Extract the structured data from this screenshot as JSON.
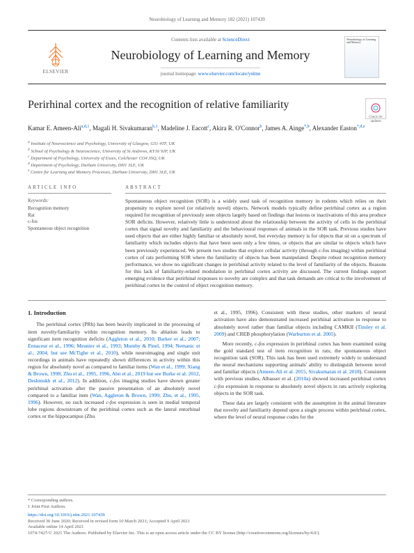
{
  "header": {
    "running": "Neurobiology of Learning and Memory 182 (2021) 107439"
  },
  "masthead": {
    "publisher": "ELSEVIER",
    "contents_prefix": "Contents lists available at ",
    "contents_link": "ScienceDirect",
    "journal": "Neurobiology of Learning and Memory",
    "homepage_prefix": "journal homepage: ",
    "homepage_url": "www.elsevier.com/locate/ynlme",
    "cover_text": "Neurobiology of Learning and Memory"
  },
  "paper": {
    "title": "Perirhinal cortex and the recognition of relative familiarity",
    "check_badge": "Check for updates",
    "authors_html": "Kamar E. Ameen-Ali<sup>a,d,1</sup>, Magali H. Sivakumaran<sup>b,1</sup>, Madeline J. Eacott<sup>c</sup>, Akira R. O'Connor<sup>b</sup>, James A. Ainge<sup>*,b</sup>, Alexander Easton<sup>*,d,e</sup>",
    "affiliations": [
      "a Institute of Neuroscience and Psychology, University of Glasgow, G51 4TF, UK",
      "b School of Psychology & Neuroscience, University of St Andrews, KY16 9JP, UK",
      "c Department of Psychology, University of Essex, Colchester CO4 3SQ, UK",
      "d Department of Psychology, Durham University, DH1 3LE, UK",
      "e Centre for Learning and Memory Processes, Durham University, DH1 3LE, UK"
    ]
  },
  "info": {
    "head": "ARTICLE INFO",
    "keywords_label": "Keywords:",
    "keywords": [
      "Recognition memory",
      "Rat",
      "c-fos",
      "Spontaneous object recognition"
    ]
  },
  "abstract": {
    "head": "ABSTRACT",
    "text": "Spontaneous object recognition (SOR) is a widely used task of recognition memory in rodents which relies on their propensity to explore novel (or relatively novel) objects. Network models typically define perirhinal cortex as a region required for recognition of previously seen objects largely based on findings that lesions or inactivations of this area produce SOR deficits. However, relatively little is understood about the relationship between the activity of cells in the perirhinal cortex that signal novelty and familiarity and the behavioural responses of animals in the SOR task. Previous studies have used objects that are either highly familiar or absolutely novel, but everyday memory is for objects that sit on a spectrum of familiarity which includes objects that have been seen only a few times, or objects that are similar to objects which have been previously experienced. We present two studies that explore cellular activity (through c-fos imaging) within perirhinal cortex of rats performing SOR where the familiarity of objects has been manipulated. Despite robust recognition memory performance, we show no significant changes in perirhinal activity related to the level of familiarity of the objects. Reasons for this lack of familiarity-related modulation in perirhinal cortex activity are discussed. The current findings support emerging evidence that perirhinal responses to novelty are complex and that task demands are critical to the involvement of perirhinal cortex in the control of object recognition memory."
  },
  "body": {
    "intro_head": "1. Introduction",
    "col1_para": "The perirhinal cortex (PRh) has been heavily implicated in the processing of item novelty/familiarity within recognition memory. Its ablation leads to significant item recognition deficits (Aggleton et al., 2010; Barker et al., 2007; Ennaceur et al., 1996; Meunier et al., 1993; Mumby & Pinel, 1994; Nemanic et al., 2004; but see McTighe et al., 2010), while neuroimaging and single unit recordings in animals have repeatedly shown differences in activity within this region for absolutely novel as compared to familiar items (Wan et al., 1999; Xiang & Brown, 1998; Zhu et al., 1995, 1996, Ahn et al., 2019 but see Burke et al. 2012, Deshmukh et al., 2012). In addition, c-fos imaging studies have shown greater perirhinal activation after the passive presentation of an absolutely novel compared to a familiar item (Wan, Aggleton & Brown, 1999; Zhu, et al., 1995, 1996). However, no such increased c-fos expression is seen in medial temporal lobe regions downstream of the perirhinal cortex such as the lateral entorhinal cortex or the hippocampus (Zhu",
    "col2_para1": "et al., 1995, 1996). Consistent with these studies, other markers of neural activation have also demonstrated increased perirhinal activation in response to absolutely novel rather than familiar objects including CAMKII (Tinsley et al. 2009) and CREB phosphorylation (Warburton et al. 2005).",
    "col2_para2": "More recently, c-fos expression in perirhinal cortex has been examined using the gold standard test of item recognition in rats; the spontaneous object recognition task (SOR). This task has been used extremely widely to understand the neural mechanisms supporting animals' ability to distinguish between novel and familiar objects (Ameen-Ali et al. 2015, Sivakumaran et al. 2018). Consistent with previous studies, Albasser et al. (2010a) showed increased perirhinal cortex c-fos expression in response to absolutely novel objects in rats actively exploring objects in the SOR task.",
    "col2_para3": "These data are largely consistent with the assumption in the animal literature that novelty and familiarity depend upon a single process within perirhinal cortex, where the level of neural response codes for the"
  },
  "footer": {
    "corr": "* Corresponding authors.",
    "joint": "1 Joint First Authors.",
    "doi": "https://doi.org/10.1016/j.nlm.2021.107439",
    "received": "Received 30 June 2020; Received in revised form 10 March 2021; Accepted 9 April 2021",
    "available": "Available online 14 April 2021",
    "copyright": "1074-7427/© 2021 The Authors. Published by Elsevier Inc. This is an open access article under the CC BY license (http://creativecommons.org/licenses/by/4.0/)."
  },
  "colors": {
    "link": "#0066cc",
    "text": "#333333",
    "muted": "#666666",
    "accent": "#ed7d31"
  }
}
